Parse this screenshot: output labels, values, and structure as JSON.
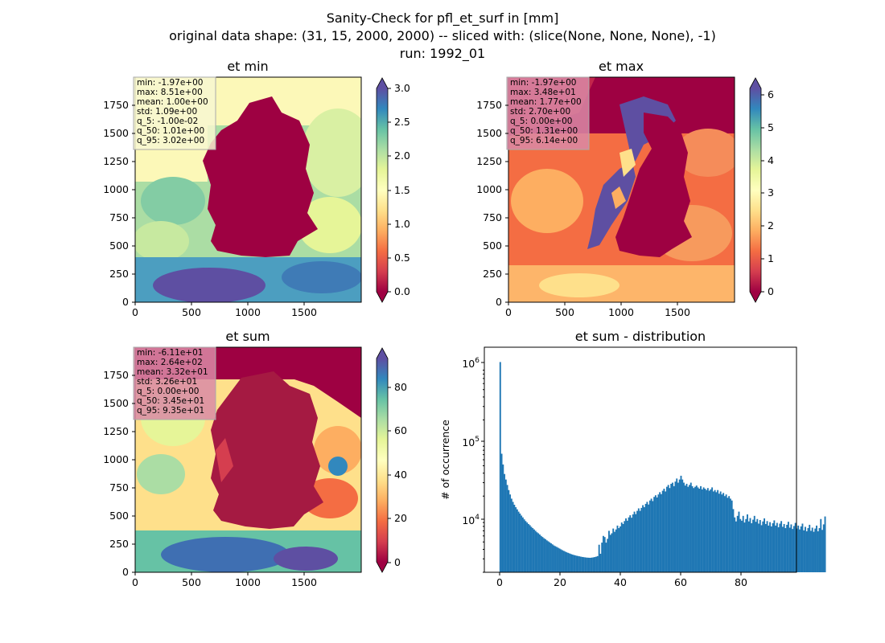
{
  "suptitle": {
    "line1": "Sanity-Check for pfl_et_surf in [mm]",
    "line2": "original data shape: (31, 15, 2000, 2000) -- sliced with: (slice(None, None, None), -1)",
    "line3": "run: 1992_01"
  },
  "panels": [
    {
      "id": "et-min",
      "title": "et min",
      "colormap": "Spectral",
      "colorbar": {
        "min": 0.0,
        "max": 3.0,
        "ticks": [
          "0.0",
          "0.5",
          "1.0",
          "1.5",
          "2.0",
          "2.5",
          "3.0"
        ]
      },
      "stats_box_color": "#f7f7d0",
      "stats": [
        "min: -1.97e+00",
        "max: 8.51e+00",
        "mean: 1.00e+00",
        "std: 1.09e+00",
        "q_5: -1.00e-02",
        "q_50: 1.01e+00",
        "q_95: 3.02e+00"
      ],
      "xticks": [
        "0",
        "500",
        "1000",
        "1500"
      ],
      "yticks": [
        "0",
        "250",
        "500",
        "750",
        "1000",
        "1250",
        "1500",
        "1750"
      ]
    },
    {
      "id": "et-max",
      "title": "et max",
      "colormap": "Spectral",
      "colorbar": {
        "min": 0,
        "max": 6.2,
        "ticks": [
          "0",
          "1",
          "2",
          "3",
          "4",
          "5",
          "6"
        ]
      },
      "stats_box_color": "#d98aa6",
      "stats": [
        "min: -1.97e+00",
        "max: 3.48e+01",
        "mean: 1.77e+00",
        "std: 2.70e+00",
        "q_5: 0.00e+00",
        "q_50: 1.31e+00",
        "q_95: 6.14e+00"
      ],
      "xticks": [
        "0",
        "500",
        "1000",
        "1500"
      ],
      "yticks": [
        "0",
        "250",
        "500",
        "750",
        "1000",
        "1250",
        "1500",
        "1750"
      ]
    },
    {
      "id": "et-sum",
      "title": "et sum",
      "colormap": "Spectral",
      "colorbar": {
        "min": -3,
        "max": 95,
        "ticks": [
          "0",
          "20",
          "40",
          "60",
          "80"
        ]
      },
      "stats_box_color": "#d98aa6",
      "stats": [
        "min: -6.11e+01",
        "max: 2.64e+02",
        "mean: 3.32e+01",
        "std: 3.26e+01",
        "q_5: 0.00e+00",
        "q_50: 3.45e+01",
        "q_95: 9.35e+01"
      ],
      "xticks": [
        "0",
        "500",
        "1000",
        "1500"
      ],
      "yticks": [
        "0",
        "250",
        "500",
        "750",
        "1000",
        "1250",
        "1500",
        "1750"
      ]
    }
  ],
  "histogram_title": "et sum - distribution",
  "histogram_ylabel": "# of occurrence",
  "histogram_xticks": [
    "0",
    "20",
    "40",
    "60",
    "80"
  ],
  "chart_data": [
    {
      "type": "heatmap",
      "title": "et min",
      "x_range": [
        0,
        2000
      ],
      "y_range": [
        0,
        2000
      ],
      "color_range": [
        0.0,
        3.0
      ],
      "colormap": "Spectral"
    },
    {
      "type": "heatmap",
      "title": "et max",
      "x_range": [
        0,
        2000
      ],
      "y_range": [
        0,
        2000
      ],
      "color_range": [
        0,
        6.2
      ],
      "colormap": "Spectral"
    },
    {
      "type": "heatmap",
      "title": "et sum",
      "x_range": [
        0,
        2000
      ],
      "y_range": [
        0,
        2000
      ],
      "color_range": [
        -3,
        95
      ],
      "colormap": "Spectral"
    },
    {
      "type": "bar",
      "title": "et sum - distribution",
      "ylabel": "# of occurrence",
      "yscale": "log",
      "xlim": [
        -5,
        98
      ],
      "ylim": [
        2000,
        1800000
      ],
      "bin_start": 0,
      "bin_width": 0.466,
      "values": [
        1150000,
        72000,
        52000,
        39000,
        33000,
        28000,
        24000,
        21000,
        18500,
        16800,
        15400,
        14300,
        13400,
        12500,
        11800,
        11100,
        10500,
        9900,
        9400,
        9000,
        8600,
        8300,
        7900,
        7600,
        7300,
        7000,
        6700,
        6500,
        6250,
        6000,
        5800,
        5600,
        5450,
        5250,
        5100,
        4950,
        4800,
        4650,
        4500,
        4400,
        4300,
        4200,
        4100,
        4000,
        3900,
        3820,
        3740,
        3660,
        3600,
        3540,
        3480,
        3420,
        3380,
        3340,
        3300,
        3270,
        3240,
        3210,
        3180,
        3160,
        3140,
        3120,
        3110,
        3100,
        3100,
        3120,
        3140,
        3170,
        3210,
        3260,
        4600,
        3500,
        4900,
        6000,
        5800,
        4900,
        5500,
        7000,
        6200,
        6500,
        7500,
        6800,
        7300,
        8200,
        7600,
        8000,
        9000,
        8600,
        9400,
        10200,
        9500,
        10500,
        11200,
        10400,
        11500,
        12500,
        11600,
        12800,
        13800,
        12800,
        14000,
        15200,
        14300,
        15800,
        16800,
        15500,
        17500,
        18500,
        17200,
        19500,
        20500,
        19200,
        21000,
        22500,
        21200,
        23500,
        25000,
        23000,
        26500,
        28000,
        25500,
        29000,
        30000,
        27000,
        31000,
        34000,
        30000,
        33000,
        37000,
        33000,
        30000,
        27500,
        29000,
        26500,
        28000,
        30000,
        27000,
        25500,
        26500,
        27500,
        26000,
        25000,
        27000,
        24500,
        26000,
        25000,
        24000,
        25500,
        23500,
        24500,
        26000,
        23000,
        24000,
        22500,
        24000,
        21500,
        23000,
        21000,
        22000,
        20000,
        21000,
        19000,
        20000,
        18500,
        17500,
        13500,
        10500,
        9300,
        11000,
        12500,
        10000,
        9500,
        11000,
        9000,
        10000,
        11500,
        9300,
        10300,
        8800,
        9800,
        11000,
        9200,
        10000,
        8700,
        9700,
        8300,
        9300,
        10200,
        8600,
        9400,
        8200,
        9100,
        8000,
        8800,
        9600,
        8200,
        8900,
        7800,
        8700,
        9400,
        7900,
        8600,
        7600,
        8400,
        9200,
        7700,
        8500,
        7400,
        8100,
        8900,
        7500,
        8200,
        7300,
        8000,
        8700,
        7100,
        7900,
        6900,
        7600,
        8400,
        7000,
        7700,
        6800,
        7500,
        8200,
        6900,
        7600,
        10000,
        7200,
        8500,
        10800
      ]
    }
  ]
}
